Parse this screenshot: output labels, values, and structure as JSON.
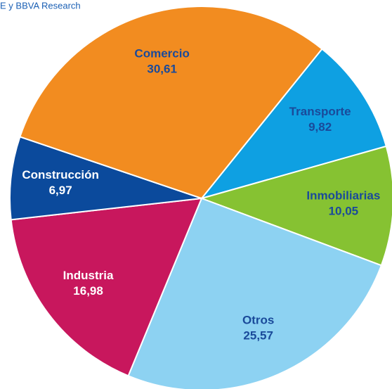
{
  "chart_data": {
    "type": "pie",
    "source": "E y BBVA Research",
    "categories": [
      "Transporte",
      "Inmobiliarias",
      "Otros",
      "Industria",
      "Construcción",
      "Comercio"
    ],
    "values": [
      9.82,
      10.05,
      25.57,
      16.98,
      6.97,
      30.61
    ],
    "value_labels": [
      "9,82",
      "10,05",
      "25,57",
      "16,98",
      "6,97",
      "30,61"
    ],
    "colors": [
      "#0ea0e2",
      "#86c232",
      "#8dd2f2",
      "#c8175d",
      "#0b4a9c",
      "#f28c20"
    ]
  }
}
